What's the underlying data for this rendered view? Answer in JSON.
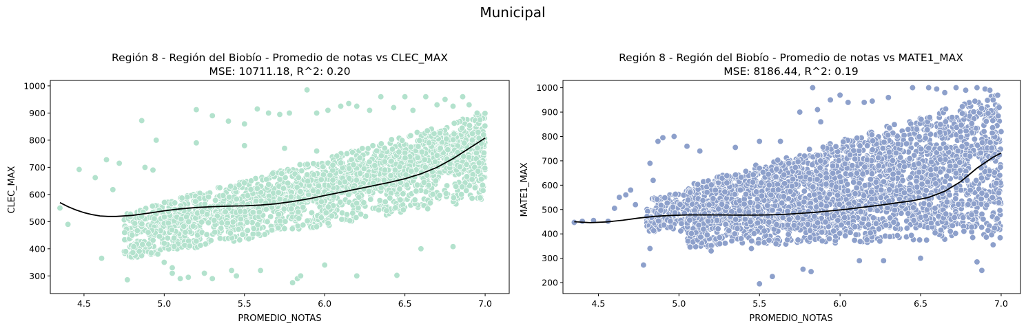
{
  "figure": {
    "suptitle": "Municipal"
  },
  "chart_data": [
    {
      "type": "scatter",
      "title": "Región 8 - Región del Biobío - Promedio de notas vs CLEC_MAX",
      "subtitle": "MSE: 10711.18, R^2: 0.20",
      "xlabel": "PROMEDIO_NOTAS",
      "ylabel": "CLEC_MAX",
      "xlim": [
        4.29,
        7.15
      ],
      "ylim": [
        235,
        1020
      ],
      "xticks": [
        "4.5",
        "5.0",
        "5.5",
        "6.0",
        "6.5",
        "7.0"
      ],
      "yticks": [
        "300",
        "400",
        "500",
        "600",
        "700",
        "800",
        "900",
        "1000"
      ],
      "point_color": "#b3e2cd",
      "trend_color": "#000000",
      "grid": false,
      "trend": {
        "x": [
          4.35,
          4.4,
          4.45,
          4.5,
          4.55,
          4.6,
          4.65,
          4.7,
          4.8,
          4.9,
          5.0,
          5.1,
          5.2,
          5.3,
          5.4,
          5.5,
          5.6,
          5.7,
          5.8,
          5.9,
          6.0,
          6.1,
          6.2,
          6.3,
          6.4,
          6.5,
          6.6,
          6.7,
          6.8,
          6.9,
          7.0
        ],
        "y": [
          570,
          555,
          543,
          533,
          526,
          521,
          519,
          519,
          523,
          531,
          540,
          547,
          552,
          555,
          557,
          558,
          561,
          566,
          574,
          584,
          596,
          608,
          620,
          632,
          644,
          658,
          676,
          700,
          732,
          770,
          808
        ]
      },
      "scatter": {
        "x": [
          4.35,
          4.4,
          4.47,
          4.57,
          4.61,
          4.64,
          4.68,
          4.72,
          4.76,
          4.81,
          4.86,
          4.88,
          4.93,
          4.96,
          5.0,
          5.05,
          5.2,
          5.1,
          5.15,
          5.3,
          5.3,
          5.4,
          5.5,
          5.58,
          5.65,
          5.72,
          5.78,
          5.8,
          5.83,
          5.85,
          5.89,
          5.95,
          6.02,
          6.1,
          6.15,
          6.2,
          6.28,
          6.35,
          6.43,
          6.5,
          6.55,
          6.63,
          6.7,
          6.75,
          6.8,
          6.86,
          6.9,
          6.95,
          6.99,
          4.77,
          4.8,
          4.9,
          5.0,
          5.05,
          5.25,
          5.45,
          5.42,
          5.6,
          6.0,
          6.2,
          6.45,
          6.6,
          6.8,
          4.95,
          5.2,
          5.5,
          5.75,
          5.95,
          6.3,
          6.65,
          6.92
        ],
        "y": [
          550,
          490,
          692,
          662,
          365,
          728,
          618,
          715,
          390,
          408,
          872,
          700,
          690,
          380,
          350,
          310,
          912,
          290,
          295,
          290,
          890,
          870,
          860,
          915,
          900,
          895,
          900,
          275,
          290,
          300,
          985,
          900,
          910,
          925,
          935,
          925,
          910,
          960,
          920,
          960,
          910,
          960,
          930,
          950,
          925,
          960,
          930,
          900,
          820,
          286,
          450,
          460,
          420,
          330,
          310,
          300,
          320,
          320,
          340,
          300,
          302,
          400,
          408,
          800,
          790,
          780,
          770,
          760,
          780,
          790,
          800
        ]
      },
      "clouds": [
        {
          "x": [
            4.95,
            7.0
          ],
          "yb": [
            470,
            690
          ],
          "yt": [
            490,
            860
          ]
        },
        {
          "x": [
            4.75,
            7.0
          ],
          "yb": [
            360,
            580
          ],
          "yt": [
            530,
            900
          ]
        }
      ]
    },
    {
      "type": "scatter",
      "title": "Región 8 - Región del Biobío - Promedio de notas vs MATE1_MAX",
      "subtitle": "MSE: 8186.44, R^2: 0.19",
      "xlabel": "PROMEDIO_NOTAS",
      "ylabel": "MATE1_MAX",
      "xlim": [
        4.28,
        7.12
      ],
      "ylim": [
        155,
        1030
      ],
      "xticks": [
        "4.5",
        "5.0",
        "5.5",
        "6.0",
        "6.5",
        "7.0"
      ],
      "yticks": [
        "200",
        "300",
        "400",
        "500",
        "600",
        "700",
        "800",
        "900",
        "1000"
      ],
      "point_color": "#8da0cb",
      "trend_color": "#000000",
      "grid": false,
      "trend": {
        "x": [
          4.35,
          4.45,
          4.55,
          4.65,
          4.75,
          4.85,
          4.95,
          5.05,
          5.15,
          5.25,
          5.35,
          5.45,
          5.55,
          5.65,
          5.75,
          5.85,
          5.95,
          6.05,
          6.15,
          6.25,
          6.35,
          6.45,
          6.55,
          6.65,
          6.75,
          6.85,
          6.95,
          7.0
        ],
        "y": [
          450,
          446,
          449,
          456,
          465,
          472,
          476,
          478,
          478,
          478,
          477,
          477,
          478,
          480,
          484,
          489,
          495,
          502,
          510,
          518,
          527,
          536,
          550,
          575,
          615,
          670,
          715,
          732
        ]
      },
      "scatter": {
        "x": [
          4.35,
          4.4,
          4.47,
          4.56,
          4.6,
          4.63,
          4.67,
          4.7,
          4.73,
          4.78,
          4.82,
          4.84,
          4.87,
          4.9,
          4.97,
          5.05,
          5.13,
          5.35,
          5.5,
          5.63,
          5.75,
          5.83,
          5.86,
          5.88,
          5.94,
          6.0,
          6.05,
          6.15,
          6.2,
          6.3,
          6.45,
          6.55,
          6.6,
          6.65,
          6.72,
          6.78,
          6.85,
          6.9,
          6.93,
          6.95,
          6.88,
          5.5,
          5.58,
          5.77,
          5.82,
          4.82,
          5.2,
          5.45,
          6.12,
          6.5,
          6.85,
          6.27,
          6.95
        ],
        "y": [
          447,
          452,
          455,
          452,
          505,
          550,
          560,
          580,
          520,
          272,
          690,
          620,
          780,
          795,
          800,
          760,
          740,
          755,
          780,
          780,
          900,
          1000,
          910,
          860,
          950,
          970,
          940,
          940,
          945,
          960,
          1000,
          1000,
          995,
          980,
          1000,
          990,
          1000,
          995,
          990,
          950,
          250,
          195,
          225,
          255,
          245,
          340,
          330,
          340,
          290,
          300,
          285,
          290,
          355
        ]
      },
      "clouds": [
        {
          "x": [
            4.8,
            7.0
          ],
          "yb": [
            410,
            430
          ],
          "yt": [
            540,
            940
          ]
        },
        {
          "x": [
            5.05,
            7.0
          ],
          "yb": [
            345,
            380
          ],
          "yt": [
            600,
            980
          ]
        }
      ]
    }
  ]
}
